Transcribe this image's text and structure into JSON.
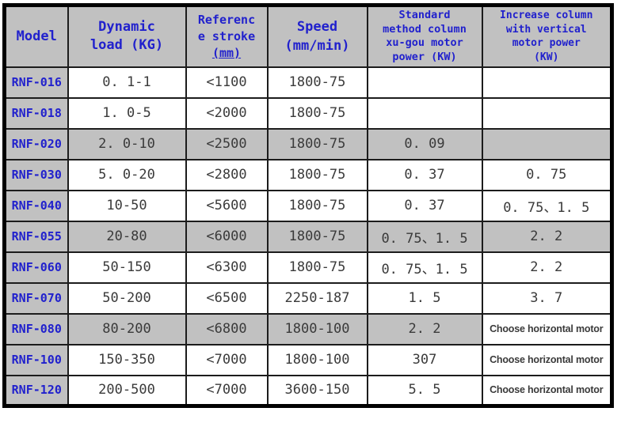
{
  "colors": {
    "header_bg": "#c1c1c1",
    "shaded_row_bg": "#c1c1c1",
    "header_text_blue": "#2121cd",
    "data_text": "#3a3a3a",
    "border": "#000000"
  },
  "table": {
    "headers": {
      "model": "Model",
      "dynamic_load": {
        "line1": "Dynamic",
        "line2": "load (KG)"
      },
      "reference_stroke": {
        "line1": "Referenc",
        "line2": "e stroke",
        "line3": "(mm)"
      },
      "speed": {
        "line1": "Speed",
        "line2": "(mm/min)"
      },
      "standard_power": {
        "line1": "Standard",
        "line2": "method column",
        "line3": "xu-gou motor",
        "line4": "power (KW)"
      },
      "increase_power": {
        "line1": "Increase column",
        "line2": "with vertical",
        "line3": "motor power",
        "line4": "(KW)"
      }
    },
    "rows": [
      {
        "model": "RNF-016",
        "load": "0. 1-1",
        "stroke": "<1100",
        "speed": "1800-75",
        "standard": "",
        "increase": ""
      },
      {
        "model": "RNF-018",
        "load": "1. 0-5",
        "stroke": "<2000",
        "speed": "1800-75",
        "standard": "",
        "increase": ""
      },
      {
        "model": "RNF-020",
        "load": "2. 0-10",
        "stroke": "<2500",
        "speed": "1800-75",
        "standard": "0. 09",
        "increase": ""
      },
      {
        "model": "RNF-030",
        "load": "5. 0-20",
        "stroke": "<2800",
        "speed": "1800-75",
        "standard": "0. 37",
        "increase": "0. 75"
      },
      {
        "model": "RNF-040",
        "load": "10-50",
        "stroke": "<5600",
        "speed": "1800-75",
        "standard": "0. 37",
        "increase": "0. 75、1. 5"
      },
      {
        "model": "RNF-055",
        "load": "20-80",
        "stroke": "<6000",
        "speed": "1800-75",
        "standard": "0. 75、1. 5",
        "increase": "2. 2"
      },
      {
        "model": "RNF-060",
        "load": "50-150",
        "stroke": "<6300",
        "speed": "1800-75",
        "standard": "0. 75、1. 5",
        "increase": "2. 2"
      },
      {
        "model": "RNF-070",
        "load": "50-200",
        "stroke": "<6500",
        "speed": "2250-187",
        "standard": "1. 5",
        "increase": "3. 7"
      },
      {
        "model": "RNF-080",
        "load": "80-200",
        "stroke": "<6800",
        "speed": "1800-100",
        "standard": "2. 2",
        "increase": "Choose horizontal motor"
      },
      {
        "model": "RNF-100",
        "load": "150-350",
        "stroke": "<7000",
        "speed": "1800-100",
        "standard": "307",
        "increase": "Choose horizontal motor"
      },
      {
        "model": "RNF-120",
        "load": "200-500",
        "stroke": "<7000",
        "speed": "3600-150",
        "standard": "5. 5",
        "increase": "Choose horizontal motor"
      }
    ]
  }
}
